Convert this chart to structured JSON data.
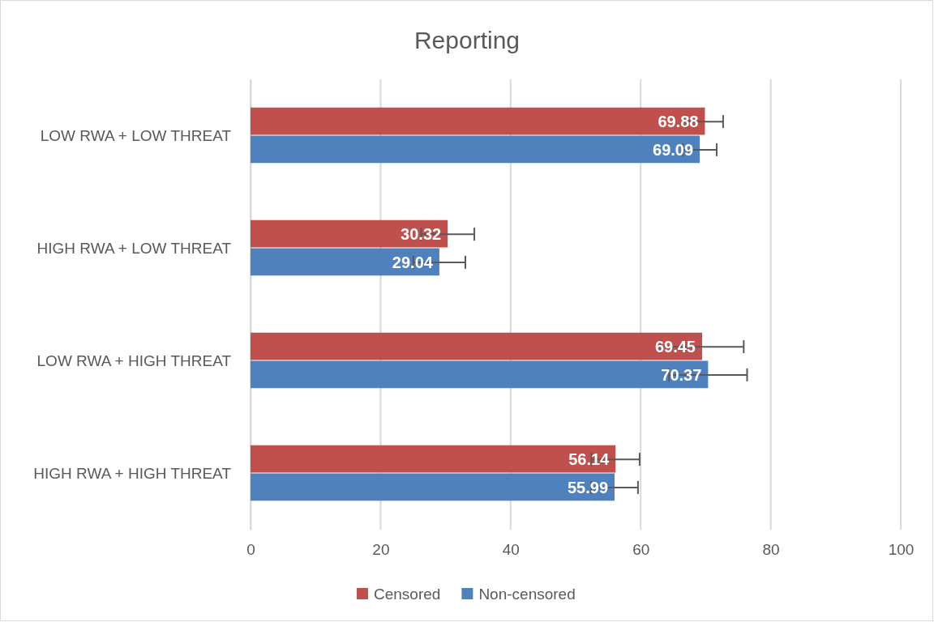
{
  "chart_data": {
    "type": "bar",
    "orientation": "horizontal",
    "title": "Reporting",
    "categories": [
      "LOW RWA + LOW THREAT",
      "HIGH RWA + LOW THREAT",
      "LOW RWA + HIGH THREAT",
      "HIGH RWA + HIGH THREAT"
    ],
    "series": [
      {
        "name": "Censored",
        "color": "#c0504d",
        "values": [
          69.88,
          30.32,
          69.45,
          56.14
        ],
        "errors": [
          2.8,
          4.1,
          6.4,
          3.7
        ]
      },
      {
        "name": "Non-censored",
        "color": "#4f81bd",
        "values": [
          69.09,
          29.04,
          70.37,
          55.99
        ],
        "errors": [
          2.6,
          4.0,
          6.0,
          3.6
        ]
      }
    ],
    "xlim": [
      0,
      100
    ],
    "xticks": [
      0,
      20,
      40,
      60,
      80,
      100
    ],
    "grid": "x",
    "legend": "bottom",
    "data_labels": true
  }
}
